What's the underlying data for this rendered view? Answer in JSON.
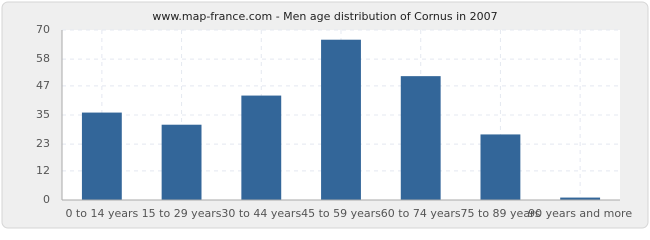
{
  "chart_data": {
    "type": "bar",
    "title": "www.map-france.com - Men age distribution of Cornus in 2007",
    "categories": [
      "0 to 14 years",
      "15 to 29 years",
      "30 to 44 years",
      "45 to 59 years",
      "60 to 74 years",
      "75 to 89 years",
      "90 years and more"
    ],
    "values": [
      36,
      31,
      43,
      66,
      51,
      27,
      1
    ],
    "color": "#336699",
    "ylim": [
      0,
      70
    ],
    "yticks": [
      0,
      12,
      23,
      35,
      47,
      58,
      70
    ],
    "grid": true
  }
}
